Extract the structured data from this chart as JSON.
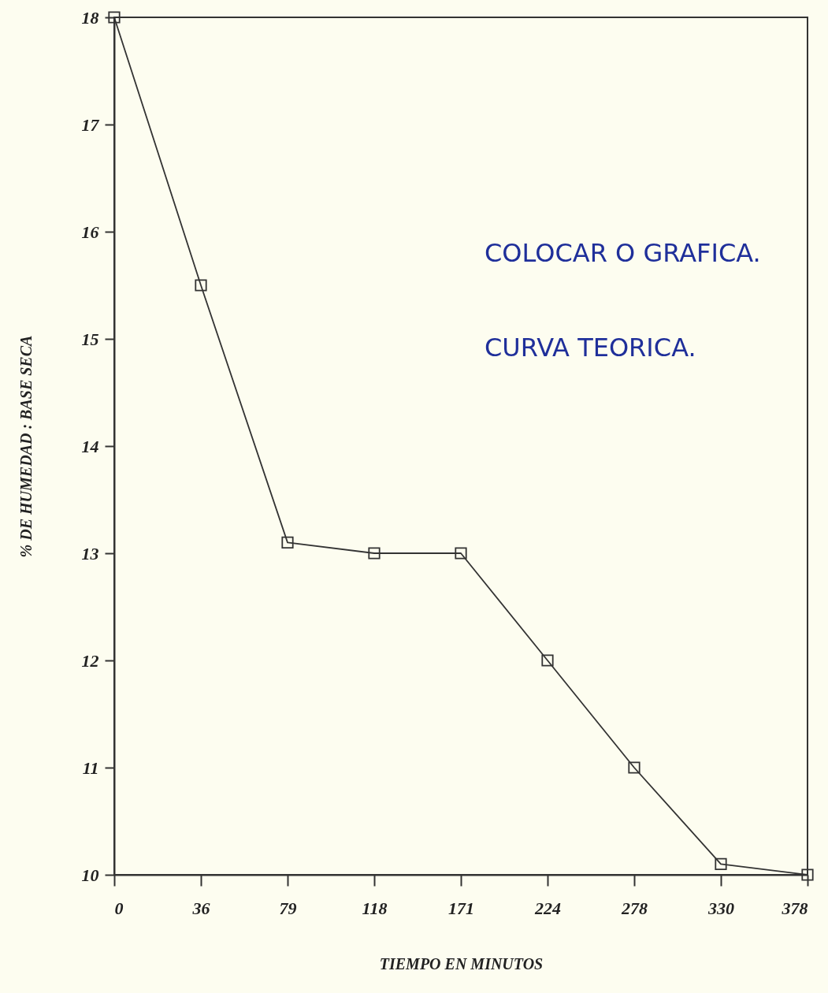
{
  "chart_data": {
    "type": "line",
    "xlabel": "TIEMPO EN MINUTOS",
    "ylabel": "% DE HUMEDAD : BASE SECA",
    "categories": [
      "0",
      "36",
      "79",
      "118",
      "171",
      "224",
      "278",
      "330",
      "378"
    ],
    "series": [
      {
        "color": "#333333",
        "values": [
          18,
          15.5,
          13.1,
          13.0,
          13.0,
          12.0,
          11.0,
          10.1,
          10.0
        ]
      }
    ],
    "ylim": [
      10,
      18
    ],
    "yticks": [
      10,
      11,
      12,
      13,
      14,
      15,
      16,
      17,
      18
    ],
    "marker": "square",
    "line_style": "solid",
    "grid": false,
    "annotations": [
      "COLOCAR O GRAFICA.",
      "CURVA TEORICA."
    ]
  }
}
